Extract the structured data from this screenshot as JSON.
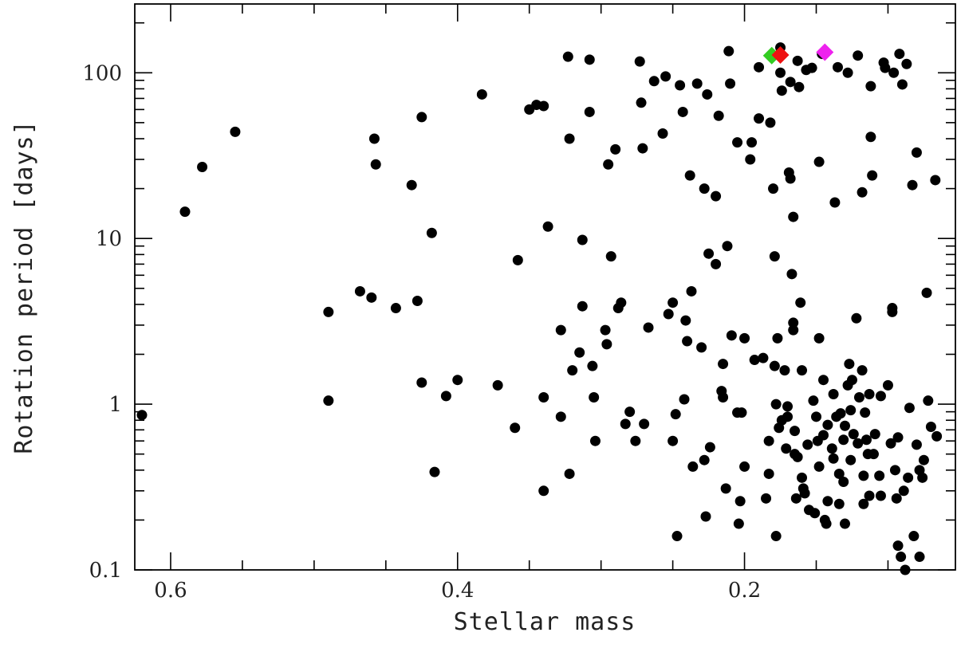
{
  "chart_data": {
    "type": "scatter",
    "xlabel": "Stellar mass",
    "ylabel": "Rotation period [days]",
    "x_reversed": true,
    "y_log": true,
    "xlim": [
      0.625,
      0.053
    ],
    "ylim": [
      0.1,
      260
    ],
    "x_ticks": [
      0.6,
      0.4,
      0.2
    ],
    "x_tick_labels": [
      "0.6",
      "0.4",
      "0.2"
    ],
    "y_ticks": [
      0.1,
      1,
      10,
      100
    ],
    "y_tick_labels": [
      "0.1",
      "1",
      "10",
      "100"
    ],
    "grid": false,
    "series": [
      {
        "marker": "circle",
        "color": "#000000",
        "points": [
          [
            0.62,
            0.86
          ],
          [
            0.59,
            14.5
          ],
          [
            0.578,
            27
          ],
          [
            0.555,
            44
          ],
          [
            0.49,
            3.6
          ],
          [
            0.49,
            1.05
          ],
          [
            0.468,
            4.8
          ],
          [
            0.46,
            4.4
          ],
          [
            0.458,
            40
          ],
          [
            0.457,
            28
          ],
          [
            0.443,
            3.8
          ],
          [
            0.432,
            21
          ],
          [
            0.428,
            4.2
          ],
          [
            0.425,
            54
          ],
          [
            0.425,
            1.35
          ],
          [
            0.418,
            10.8
          ],
          [
            0.416,
            0.39
          ],
          [
            0.408,
            1.12
          ],
          [
            0.4,
            1.4
          ],
          [
            0.383,
            74
          ],
          [
            0.372,
            1.3
          ],
          [
            0.36,
            0.72
          ],
          [
            0.358,
            7.4
          ],
          [
            0.35,
            60
          ],
          [
            0.345,
            64
          ],
          [
            0.34,
            63
          ],
          [
            0.34,
            1.1
          ],
          [
            0.34,
            0.3
          ],
          [
            0.337,
            11.8
          ],
          [
            0.328,
            2.8
          ],
          [
            0.328,
            0.84
          ],
          [
            0.32,
            1.6
          ],
          [
            0.323,
            125
          ],
          [
            0.322,
            40
          ],
          [
            0.322,
            0.38
          ],
          [
            0.315,
            2.05
          ],
          [
            0.313,
            9.8
          ],
          [
            0.313,
            3.9
          ],
          [
            0.308,
            120
          ],
          [
            0.308,
            58
          ],
          [
            0.306,
            1.7
          ],
          [
            0.305,
            1.1
          ],
          [
            0.304,
            0.6
          ],
          [
            0.297,
            2.8
          ],
          [
            0.296,
            2.3
          ],
          [
            0.295,
            28
          ],
          [
            0.293,
            7.8
          ],
          [
            0.29,
            34.5
          ],
          [
            0.288,
            3.8
          ],
          [
            0.286,
            4.1
          ],
          [
            0.283,
            0.76
          ],
          [
            0.28,
            0.9
          ],
          [
            0.276,
            0.6
          ],
          [
            0.273,
            117
          ],
          [
            0.272,
            66
          ],
          [
            0.271,
            35
          ],
          [
            0.27,
            0.76
          ],
          [
            0.267,
            2.9
          ],
          [
            0.263,
            89
          ],
          [
            0.257,
            43
          ],
          [
            0.255,
            95
          ],
          [
            0.253,
            3.5
          ],
          [
            0.25,
            4.1
          ],
          [
            0.25,
            0.6
          ],
          [
            0.248,
            0.87
          ],
          [
            0.247,
            0.16
          ],
          [
            0.245,
            84
          ],
          [
            0.243,
            58
          ],
          [
            0.242,
            1.07
          ],
          [
            0.241,
            3.2
          ],
          [
            0.24,
            2.4
          ],
          [
            0.238,
            24
          ],
          [
            0.237,
            4.8
          ],
          [
            0.236,
            0.42
          ],
          [
            0.233,
            86
          ],
          [
            0.23,
            2.2
          ],
          [
            0.228,
            20
          ],
          [
            0.228,
            0.46
          ],
          [
            0.227,
            0.21
          ],
          [
            0.226,
            74
          ],
          [
            0.225,
            8.1
          ],
          [
            0.224,
            0.55
          ],
          [
            0.22,
            18
          ],
          [
            0.22,
            7
          ],
          [
            0.218,
            55
          ],
          [
            0.216,
            1.2
          ],
          [
            0.215,
            1.75
          ],
          [
            0.215,
            1.1
          ],
          [
            0.213,
            0.31
          ],
          [
            0.212,
            9
          ],
          [
            0.211,
            135
          ],
          [
            0.21,
            86
          ],
          [
            0.209,
            2.6
          ],
          [
            0.205,
            38
          ],
          [
            0.205,
            0.89
          ],
          [
            0.204,
            0.19
          ],
          [
            0.203,
            0.26
          ],
          [
            0.202,
            0.89
          ],
          [
            0.2,
            2.5
          ],
          [
            0.2,
            0.42
          ],
          [
            0.196,
            30
          ],
          [
            0.195,
            38
          ],
          [
            0.193,
            1.85
          ],
          [
            0.19,
            108
          ],
          [
            0.19,
            53
          ],
          [
            0.187,
            1.9
          ],
          [
            0.185,
            0.27
          ],
          [
            0.183,
            0.6
          ],
          [
            0.183,
            0.38
          ],
          [
            0.182,
            50
          ],
          [
            0.18,
            20
          ],
          [
            0.179,
            7.8
          ],
          [
            0.179,
            1.7
          ],
          [
            0.178,
            1.0
          ],
          [
            0.178,
            0.16
          ],
          [
            0.177,
            2.5
          ],
          [
            0.176,
            0.72
          ],
          [
            0.175,
            142
          ],
          [
            0.175,
            100
          ],
          [
            0.174,
            78
          ],
          [
            0.174,
            0.8
          ],
          [
            0.172,
            1.6
          ],
          [
            0.171,
            0.54
          ],
          [
            0.17,
            0.97
          ],
          [
            0.17,
            0.84
          ],
          [
            0.169,
            25
          ],
          [
            0.168,
            88
          ],
          [
            0.168,
            23
          ],
          [
            0.167,
            6.1
          ],
          [
            0.166,
            13.5
          ],
          [
            0.166,
            3.1
          ],
          [
            0.166,
            2.8
          ],
          [
            0.165,
            0.69
          ],
          [
            0.165,
            0.5
          ],
          [
            0.164,
            0.27
          ],
          [
            0.163,
            0.48
          ],
          [
            0.163,
            118
          ],
          [
            0.162,
            82
          ],
          [
            0.161,
            4.1
          ],
          [
            0.16,
            1.6
          ],
          [
            0.16,
            0.36
          ],
          [
            0.159,
            0.31
          ],
          [
            0.158,
            0.29
          ],
          [
            0.157,
            104
          ],
          [
            0.156,
            0.57
          ],
          [
            0.155,
            0.23
          ],
          [
            0.153,
            107
          ],
          [
            0.152,
            1.05
          ],
          [
            0.151,
            0.22
          ],
          [
            0.15,
            0.84
          ],
          [
            0.149,
            0.6
          ],
          [
            0.148,
            29
          ],
          [
            0.148,
            2.5
          ],
          [
            0.148,
            0.42
          ],
          [
            0.146,
            130
          ],
          [
            0.145,
            1.4
          ],
          [
            0.145,
            0.65
          ],
          [
            0.144,
            0.2
          ],
          [
            0.143,
            0.19
          ],
          [
            0.142,
            0.75
          ],
          [
            0.142,
            0.26
          ],
          [
            0.139,
            0.54
          ],
          [
            0.138,
            1.15
          ],
          [
            0.138,
            0.47
          ],
          [
            0.137,
            16.5
          ],
          [
            0.136,
            0.84
          ],
          [
            0.135,
            108
          ],
          [
            0.134,
            0.38
          ],
          [
            0.134,
            0.25
          ],
          [
            0.133,
            0.88
          ],
          [
            0.131,
            0.61
          ],
          [
            0.131,
            0.34
          ],
          [
            0.13,
            0.74
          ],
          [
            0.13,
            0.19
          ],
          [
            0.128,
            100
          ],
          [
            0.128,
            1.3
          ],
          [
            0.127,
            1.75
          ],
          [
            0.126,
            0.92
          ],
          [
            0.126,
            0.46
          ],
          [
            0.125,
            1.4
          ],
          [
            0.124,
            0.66
          ],
          [
            0.122,
            3.3
          ],
          [
            0.121,
            127
          ],
          [
            0.121,
            0.58
          ],
          [
            0.12,
            1.1
          ],
          [
            0.118,
            19
          ],
          [
            0.118,
            1.6
          ],
          [
            0.117,
            0.37
          ],
          [
            0.117,
            0.25
          ],
          [
            0.116,
            0.89
          ],
          [
            0.115,
            0.61
          ],
          [
            0.114,
            0.5
          ],
          [
            0.113,
            1.15
          ],
          [
            0.113,
            0.28
          ],
          [
            0.112,
            83
          ],
          [
            0.112,
            41
          ],
          [
            0.111,
            24
          ],
          [
            0.11,
            0.5
          ],
          [
            0.109,
            0.66
          ],
          [
            0.106,
            0.37
          ],
          [
            0.105,
            0.28
          ],
          [
            0.105,
            1.12
          ],
          [
            0.103,
            115
          ],
          [
            0.102,
            107
          ],
          [
            0.1,
            1.3
          ],
          [
            0.098,
            0.58
          ],
          [
            0.097,
            3.6
          ],
          [
            0.097,
            3.8
          ],
          [
            0.096,
            100
          ],
          [
            0.095,
            0.4
          ],
          [
            0.094,
            0.27
          ],
          [
            0.093,
            0.63
          ],
          [
            0.093,
            0.14
          ],
          [
            0.092,
            130
          ],
          [
            0.091,
            0.12
          ],
          [
            0.09,
            85
          ],
          [
            0.089,
            0.3
          ],
          [
            0.088,
            0.1
          ],
          [
            0.087,
            113
          ],
          [
            0.086,
            0.36
          ],
          [
            0.085,
            0.95
          ],
          [
            0.083,
            21
          ],
          [
            0.082,
            0.16
          ],
          [
            0.08,
            0.57
          ],
          [
            0.08,
            33
          ],
          [
            0.078,
            0.4
          ],
          [
            0.078,
            0.12
          ],
          [
            0.076,
            0.36
          ],
          [
            0.075,
            0.46
          ],
          [
            0.073,
            4.7
          ],
          [
            0.072,
            1.05
          ],
          [
            0.07,
            0.73
          ],
          [
            0.067,
            22.5
          ],
          [
            0.066,
            0.64
          ]
        ]
      },
      {
        "marker": "diamond",
        "color": "#33cc22",
        "points": [
          [
            0.181,
            127
          ]
        ]
      },
      {
        "marker": "diamond",
        "color": "#ee1111",
        "points": [
          [
            0.175,
            128
          ]
        ]
      },
      {
        "marker": "diamond",
        "color": "#ee22ee",
        "points": [
          [
            0.144,
            133
          ]
        ]
      }
    ]
  }
}
